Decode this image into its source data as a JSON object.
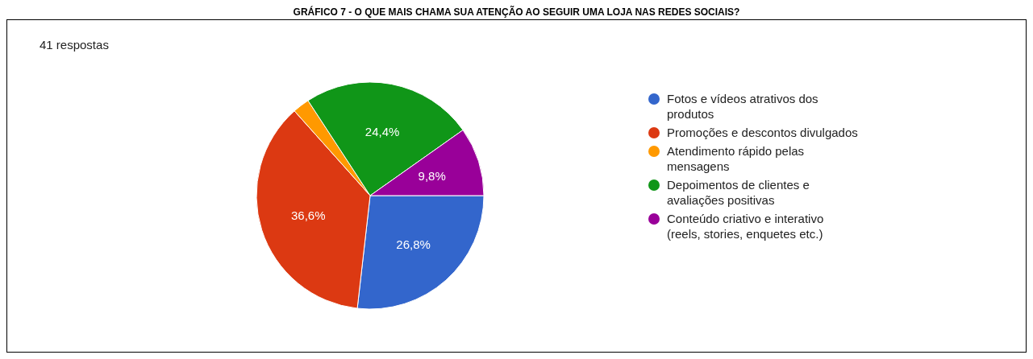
{
  "chart_data": {
    "type": "pie",
    "title": "GRÁFICO 7 - O QUE MAIS CHAMA SUA ATENÇÃO AO SEGUIR UMA LOJA NAS REDES SOCIAIS?",
    "subtitle": "41 respostas",
    "categories": [
      "Fotos e vídeos atrativos dos produtos",
      "Promoções e descontos divulgados",
      "Atendimento rápido pelas mensagens",
      "Depoimentos de clientes e avaliações positivas",
      "Conteúdo criativo e interativo (reels, stories, enquetes etc.)"
    ],
    "values": [
      26.8,
      36.6,
      2.4,
      24.4,
      9.8
    ],
    "colors": [
      "#3366cc",
      "#dc3912",
      "#ff9900",
      "#109618",
      "#990099"
    ],
    "value_labels": [
      "26,8%",
      "36,6%",
      null,
      "24,4%",
      "9,8%"
    ],
    "legend": "right"
  }
}
